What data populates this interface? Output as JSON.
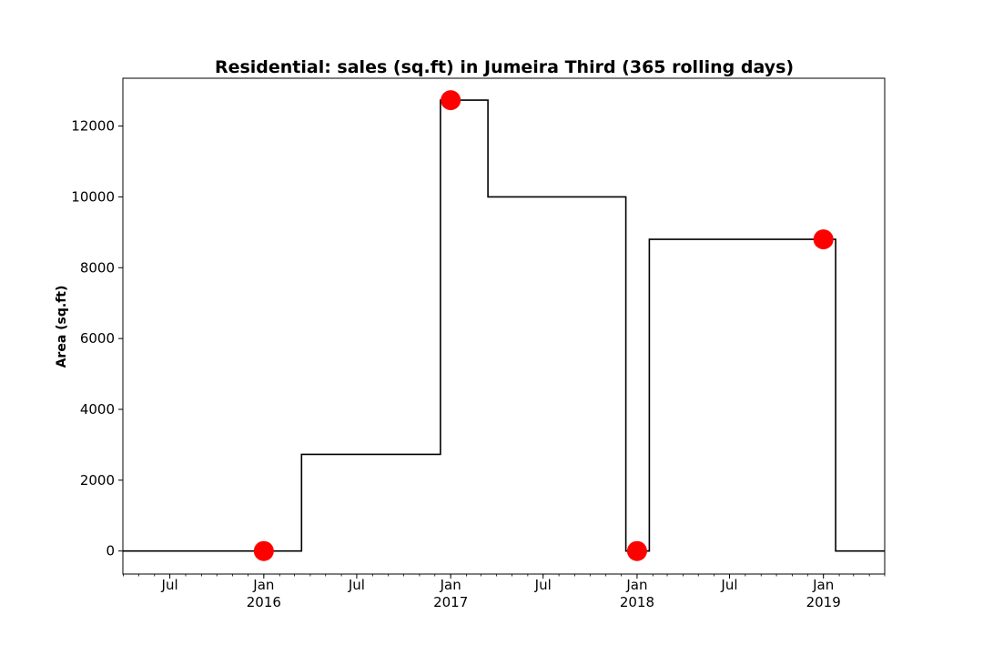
{
  "chart_data": {
    "type": "line",
    "title": "Residential: sales (sq.ft) in Jumeira Third (365 rolling days)",
    "xlabel": "",
    "ylabel": "Area (sq.ft)",
    "xlim": [
      "2015-03-31",
      "2019-05-01"
    ],
    "ylim": [
      -650,
      13350
    ],
    "y_ticks": [
      0,
      2000,
      4000,
      6000,
      8000,
      10000,
      12000
    ],
    "x_major_ticks": [
      {
        "date": "2015-07-01",
        "label": "Jul",
        "year": ""
      },
      {
        "date": "2016-01-01",
        "label": "Jan",
        "year": "2016"
      },
      {
        "date": "2016-07-01",
        "label": "Jul",
        "year": ""
      },
      {
        "date": "2017-01-01",
        "label": "Jan",
        "year": "2017"
      },
      {
        "date": "2017-07-01",
        "label": "Jul",
        "year": ""
      },
      {
        "date": "2018-01-01",
        "label": "Jan",
        "year": "2018"
      },
      {
        "date": "2018-07-01",
        "label": "Jul",
        "year": ""
      },
      {
        "date": "2019-01-01",
        "label": "Jan",
        "year": "2019"
      }
    ],
    "grid": false,
    "series": [
      {
        "style": "step",
        "color": "#000000",
        "points": [
          {
            "x": "2015-03-31",
            "y": 0
          },
          {
            "x": "2016-03-15",
            "y": 0
          },
          {
            "x": "2016-03-15",
            "y": 2730
          },
          {
            "x": "2016-12-12",
            "y": 2730
          },
          {
            "x": "2016-12-12",
            "y": 12730
          },
          {
            "x": "2017-03-15",
            "y": 12730
          },
          {
            "x": "2017-03-15",
            "y": 10000
          },
          {
            "x": "2017-12-10",
            "y": 10000
          },
          {
            "x": "2017-12-10",
            "y": 0
          },
          {
            "x": "2018-01-25",
            "y": 0
          },
          {
            "x": "2018-01-25",
            "y": 8800
          },
          {
            "x": "2019-01-25",
            "y": 8800
          },
          {
            "x": "2019-01-25",
            "y": 0
          },
          {
            "x": "2019-05-01",
            "y": 0
          }
        ]
      },
      {
        "style": "markers",
        "color": "#ff0000",
        "points": [
          {
            "x": "2016-01-01",
            "y": 0
          },
          {
            "x": "2017-01-01",
            "y": 12730
          },
          {
            "x": "2018-01-01",
            "y": 0
          },
          {
            "x": "2019-01-01",
            "y": 8800
          }
        ]
      }
    ]
  }
}
